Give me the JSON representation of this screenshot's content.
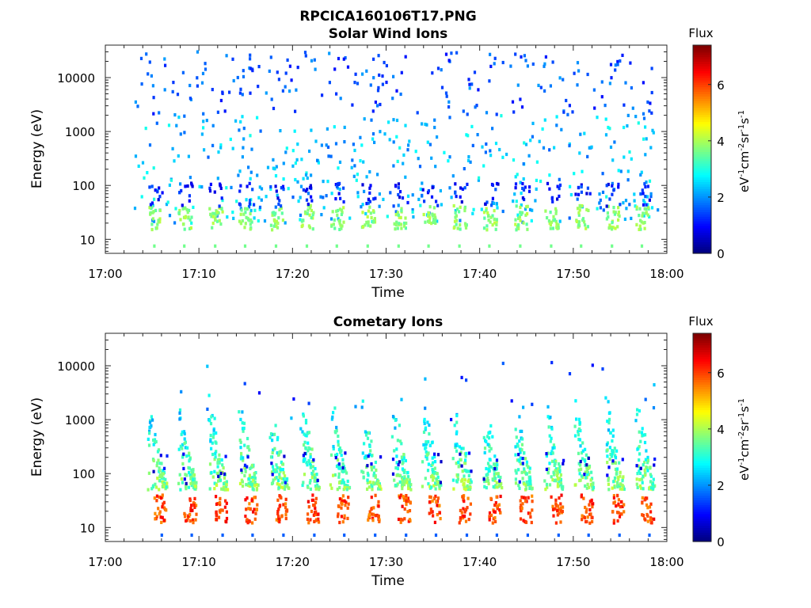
{
  "figure": {
    "filename": "RPCICA160106T17.PNG"
  },
  "chart_data": [
    {
      "type": "heatmap",
      "title": "Solar Wind Ions",
      "xlabel": "Time",
      "ylabel": "Energy (eV)",
      "x_ticks": [
        "17:00",
        "17:10",
        "17:20",
        "17:30",
        "17:40",
        "17:50",
        "18:00"
      ],
      "x_range_minutes": [
        0,
        60
      ],
      "y_scale": "log",
      "y_ticks": [
        10,
        100,
        1000,
        10000
      ],
      "y_range_eV": [
        5.5,
        40000
      ],
      "colorbar": {
        "title": "Flux",
        "label": "eV-1cm-2sr-1s-1",
        "ticks": [
          0,
          2,
          4,
          6
        ],
        "range": [
          0,
          7.4
        ],
        "colormap": "jet"
      },
      "sweep_start_minutes": [
        4.5,
        7.7,
        11.0,
        14.2,
        17.5,
        20.8,
        24.0,
        27.3,
        30.6,
        33.8,
        37.1,
        40.3,
        43.6,
        46.9,
        50.1,
        53.4,
        56.6
      ],
      "core_energy_range_eV": [
        15,
        40
      ],
      "core_flux_level": 3.8,
      "scattered_energy_range_eV": [
        20,
        30000
      ],
      "scattered_flux_range": [
        1.0,
        3.0
      ]
    },
    {
      "type": "heatmap",
      "title": "Cometary Ions",
      "xlabel": "Time",
      "ylabel": "Energy (eV)",
      "x_ticks": [
        "17:00",
        "17:10",
        "17:20",
        "17:30",
        "17:40",
        "17:50",
        "18:00"
      ],
      "x_range_minutes": [
        0,
        60
      ],
      "y_scale": "log",
      "y_ticks": [
        10,
        100,
        1000,
        10000
      ],
      "y_range_eV": [
        5.5,
        40000
      ],
      "colorbar": {
        "title": "Flux",
        "label": "eV-1cm-2sr-1s-1",
        "ticks": [
          0,
          2,
          4,
          6
        ],
        "range": [
          0,
          7.4
        ],
        "colormap": "jet"
      },
      "sweep_start_minutes": [
        4.5,
        7.7,
        11.0,
        14.2,
        17.5,
        20.8,
        24.0,
        27.3,
        30.6,
        33.8,
        37.1,
        40.3,
        43.6,
        46.9,
        50.1,
        53.4,
        56.6
      ],
      "peak_energy_range_eV": [
        12,
        40
      ],
      "peak_flux_level": 6.0,
      "tail_top_energy_eV": 3000,
      "tail_flux_level": 3.2
    }
  ]
}
